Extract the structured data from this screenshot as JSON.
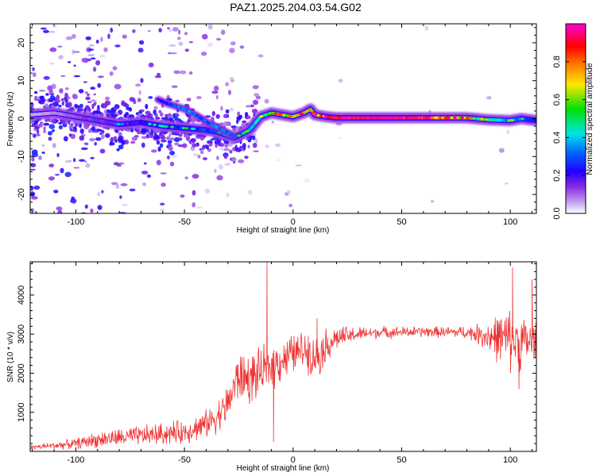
{
  "title": "PAZ1.2025.204.03.54.G02",
  "colors": {
    "axis": "#000000",
    "snr_line": "#ee3333",
    "colormap": [
      "#ffffff",
      "#c0a0f0",
      "#8a2be2",
      "#2200ff",
      "#0066ff",
      "#00e5e5",
      "#00e000",
      "#ffe800",
      "#ff8000",
      "#ff0000",
      "#ff0080",
      "#ff00cc"
    ]
  },
  "chart_data": [
    {
      "type": "heatmap",
      "xlabel": "Height of straight line (km)",
      "ylabel": "Frequency (Hz)",
      "xlim": [
        -121,
        112
      ],
      "ylim": [
        -25,
        25
      ],
      "xticks": [
        -100,
        -50,
        0,
        50,
        100
      ],
      "xtick_labels": [
        "-100",
        "-50",
        "0",
        "50",
        "100"
      ],
      "yticks": [
        -20,
        -10,
        0,
        10,
        20
      ],
      "ytick_labels": [
        "-20",
        "-10",
        "0",
        "10",
        "20"
      ],
      "colorbar": {
        "label": "Normalized spectral amplitude",
        "range": [
          0,
          1
        ],
        "ticks": [
          0.0,
          0.2,
          0.4,
          0.6,
          0.8
        ],
        "tick_labels": [
          "0.0",
          "0.2",
          "0.4",
          "0.6",
          "0.8"
        ]
      },
      "ridge": {
        "x": [
          -121,
          -110,
          -100,
          -90,
          -80,
          -70,
          -60,
          -50,
          -40,
          -35,
          -30,
          -27,
          -25,
          -20,
          -15,
          -10,
          -5,
          0,
          5,
          8,
          10,
          15,
          20,
          30,
          40,
          50,
          60,
          70,
          80,
          90,
          100,
          105,
          112
        ],
        "freq": [
          1,
          1.5,
          0.5,
          -0.5,
          -1.5,
          -1,
          -2,
          -2.5,
          -3,
          -3.5,
          -4.5,
          -5,
          -4.5,
          -3,
          0.5,
          1.5,
          1,
          0.5,
          1.5,
          2.5,
          1,
          0.5,
          0.2,
          0.2,
          0.2,
          0.2,
          0.2,
          0.2,
          0.2,
          -0.3,
          -0.5,
          0,
          -0.5
        ],
        "amplitude": [
          0.05,
          0.08,
          0.12,
          0.15,
          0.18,
          0.2,
          0.25,
          0.25,
          0.28,
          0.3,
          0.3,
          0.32,
          0.3,
          0.35,
          0.45,
          0.55,
          0.6,
          0.65,
          0.7,
          0.6,
          0.7,
          0.8,
          0.9,
          0.95,
          1.0,
          0.95,
          0.85,
          0.75,
          0.6,
          0.45,
          0.35,
          0.3,
          0.25
        ]
      },
      "branch": {
        "x": [
          -62,
          -58,
          -55,
          -50,
          -45,
          -42,
          -38,
          -34,
          -31,
          -28
        ],
        "freq": [
          5,
          4,
          3.5,
          2.5,
          1,
          0,
          -1.5,
          -2.5,
          -3.5,
          -4.5
        ],
        "amplitude": [
          0.2,
          0.25,
          0.3,
          0.32,
          0.3,
          0.28,
          0.3,
          0.32,
          0.3,
          0.3
        ]
      }
    },
    {
      "type": "line",
      "xlabel": "Height of straight line (km)",
      "ylabel": "SNR (10 * v/v)",
      "xlim": [
        -121,
        112
      ],
      "ylim": [
        0,
        4850
      ],
      "xticks": [
        -100,
        -50,
        0,
        50,
        100
      ],
      "xtick_labels": [
        "-100",
        "-50",
        "0",
        "50",
        "100"
      ],
      "yticks": [
        1000,
        2000,
        3000,
        4000
      ],
      "ytick_labels": [
        "1000",
        "2000",
        "3000",
        "4000"
      ],
      "series": [
        {
          "x": [
            -121,
            -110,
            -100,
            -90,
            -80,
            -70,
            -60,
            -50,
            -40,
            -35,
            -30,
            -27,
            -25,
            -20,
            -15,
            -12,
            -10,
            0,
            5,
            10,
            12,
            15,
            20,
            30,
            40,
            50,
            60,
            70,
            80,
            85,
            90,
            95,
            100,
            105,
            112
          ],
          "values": [
            100,
            150,
            200,
            300,
            350,
            400,
            450,
            500,
            700,
            900,
            1200,
            1700,
            1900,
            1850,
            2000,
            2100,
            2200,
            2500,
            2600,
            2400,
            2500,
            2700,
            2900,
            3000,
            3050,
            3050,
            3060,
            3050,
            3050,
            3000,
            2950,
            2900,
            2850,
            2800,
            2800
          ],
          "noise": [
            70,
            90,
            130,
            200,
            230,
            250,
            280,
            300,
            350,
            400,
            500,
            600,
            650,
            650,
            600,
            600,
            600,
            500,
            480,
            500,
            550,
            450,
            300,
            180,
            150,
            140,
            140,
            140,
            160,
            250,
            450,
            650,
            800,
            700,
            600
          ],
          "spikes": [
            [
              -12,
              4850
            ],
            [
              -11,
              2200
            ],
            [
              -9,
              250
            ],
            [
              7,
              2950
            ],
            [
              11,
              3400
            ],
            [
              101,
              4700
            ],
            [
              104,
              1600
            ],
            [
              110,
              4400
            ]
          ]
        }
      ]
    }
  ]
}
